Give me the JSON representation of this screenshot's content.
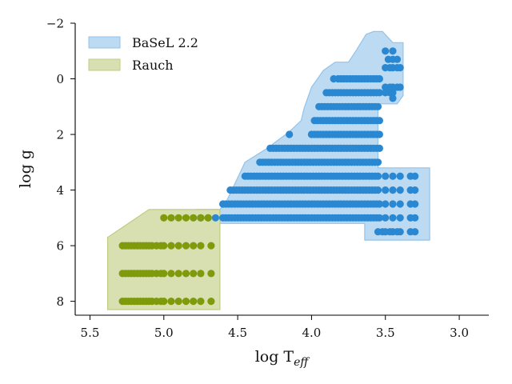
{
  "chart_data": {
    "type": "scatter",
    "xlabel": "log T",
    "xlabel_sub": "eff",
    "ylabel": "log g",
    "xlim": [
      5.6,
      2.8
    ],
    "ylim": [
      8.5,
      -2
    ],
    "xticks": [
      5.5,
      5.0,
      4.5,
      4.0,
      3.5,
      3.0
    ],
    "xtick_labels": [
      "5.5",
      "5.0",
      "4.5",
      "4.0",
      "3.5",
      "3.0"
    ],
    "yticks": [
      -2,
      0,
      2,
      4,
      6,
      8
    ],
    "ytick_labels": [
      "−2",
      "0",
      "2",
      "4",
      "6",
      "8"
    ],
    "grid": false,
    "legend_position": "top-left",
    "series": [
      {
        "name": "BaSeL 2.2",
        "color": "#2a88d2",
        "fill_color": "#bcdaf2",
        "edge_color": "#92c3ea",
        "region": [
          [
            4.78,
            5.2
          ],
          [
            4.78,
            4.7
          ],
          [
            4.62,
            4.7
          ],
          [
            4.58,
            4.45
          ],
          [
            4.45,
            3.0
          ],
          [
            4.3,
            2.5
          ],
          [
            4.15,
            1.9
          ],
          [
            4.07,
            1.5
          ],
          [
            4.05,
            1.05
          ],
          [
            4.0,
            0.3
          ],
          [
            3.92,
            -0.3
          ],
          [
            3.84,
            -0.6
          ],
          [
            3.75,
            -0.6
          ],
          [
            3.7,
            -1.0
          ],
          [
            3.63,
            -1.6
          ],
          [
            3.58,
            -1.7
          ],
          [
            3.52,
            -1.7
          ],
          [
            3.45,
            -1.3
          ],
          [
            3.38,
            -1.3
          ],
          [
            3.38,
            0.6
          ],
          [
            3.42,
            0.9
          ],
          [
            3.5,
            0.9
          ],
          [
            3.55,
            0.9
          ],
          [
            3.55,
            3.2
          ],
          [
            3.2,
            3.2
          ],
          [
            3.2,
            5.8
          ],
          [
            3.45,
            5.8
          ],
          [
            3.64,
            5.8
          ],
          [
            3.64,
            5.2
          ]
        ],
        "rows": [
          {
            "y": -1.0,
            "x": [
              3.5,
              3.45
            ]
          },
          {
            "y": -0.7,
            "x": [
              3.48,
              3.45,
              3.42
            ]
          },
          {
            "y": -0.4,
            "x": [
              3.5,
              3.47,
              3.45,
              3.42,
              3.4
            ]
          },
          {
            "y": 0.0,
            "x": [
              3.85,
              3.82,
              3.8,
              3.78,
              3.76,
              3.74,
              3.72,
              3.7,
              3.68,
              3.66,
              3.64,
              3.62,
              3.6,
              3.58,
              3.56,
              3.54
            ]
          },
          {
            "y": 0.3,
            "x": [
              3.5,
              3.47,
              3.45,
              3.42,
              3.4
            ]
          },
          {
            "y": 0.5,
            "x": [
              3.9,
              3.88,
              3.86,
              3.84,
              3.82,
              3.8,
              3.78,
              3.76,
              3.74,
              3.72,
              3.7,
              3.68,
              3.66,
              3.64,
              3.62,
              3.6,
              3.58,
              3.56,
              3.54,
              3.5,
              3.47,
              3.45
            ]
          },
          {
            "y": 0.7,
            "x": [
              3.45
            ]
          },
          {
            "y": 1.0,
            "x": [
              3.95,
              3.93,
              3.91,
              3.89,
              3.87,
              3.85,
              3.83,
              3.81,
              3.79,
              3.77,
              3.75,
              3.73,
              3.71,
              3.69,
              3.67,
              3.65,
              3.63,
              3.61,
              3.59,
              3.57,
              3.55
            ]
          },
          {
            "y": 1.5,
            "x": [
              3.98,
              3.96,
              3.94,
              3.92,
              3.9,
              3.88,
              3.86,
              3.84,
              3.82,
              3.8,
              3.78,
              3.76,
              3.74,
              3.72,
              3.7,
              3.68,
              3.66,
              3.64,
              3.62,
              3.6,
              3.58,
              3.56,
              3.54
            ]
          },
          {
            "y": 2.0,
            "x": [
              4.15,
              4.0,
              3.98,
              3.96,
              3.94,
              3.92,
              3.9,
              3.88,
              3.86,
              3.84,
              3.82,
              3.8,
              3.78,
              3.76,
              3.74,
              3.72,
              3.7,
              3.68,
              3.66,
              3.64,
              3.62,
              3.6,
              3.58,
              3.56,
              3.54
            ]
          },
          {
            "y": 2.5,
            "x": [
              4.28,
              4.26,
              4.24,
              4.22,
              4.2,
              4.18,
              4.16,
              4.14,
              4.12,
              4.1,
              4.08,
              4.06,
              4.04,
              4.02,
              4.0,
              3.98,
              3.96,
              3.94,
              3.92,
              3.9,
              3.88,
              3.86,
              3.84,
              3.82,
              3.8,
              3.78,
              3.76,
              3.74,
              3.72,
              3.7,
              3.68,
              3.66,
              3.64,
              3.62,
              3.6,
              3.58,
              3.56,
              3.54
            ]
          },
          {
            "y": 3.0,
            "x": [
              4.35,
              4.33,
              4.31,
              4.29,
              4.27,
              4.25,
              4.23,
              4.21,
              4.19,
              4.17,
              4.15,
              4.13,
              4.11,
              4.09,
              4.07,
              4.05,
              4.03,
              4.01,
              3.99,
              3.97,
              3.95,
              3.93,
              3.91,
              3.89,
              3.87,
              3.85,
              3.83,
              3.81,
              3.79,
              3.77,
              3.75,
              3.73,
              3.71,
              3.69,
              3.67,
              3.65,
              3.63,
              3.61,
              3.59,
              3.57,
              3.55
            ]
          },
          {
            "y": 3.5,
            "x": [
              4.45,
              4.43,
              4.41,
              4.39,
              4.37,
              4.35,
              4.33,
              4.31,
              4.29,
              4.27,
              4.25,
              4.23,
              4.21,
              4.19,
              4.17,
              4.15,
              4.13,
              4.11,
              4.09,
              4.07,
              4.05,
              4.03,
              4.01,
              3.99,
              3.97,
              3.95,
              3.93,
              3.91,
              3.89,
              3.87,
              3.85,
              3.83,
              3.81,
              3.79,
              3.77,
              3.75,
              3.73,
              3.71,
              3.69,
              3.67,
              3.65,
              3.63,
              3.61,
              3.59,
              3.57,
              3.55,
              3.5,
              3.45,
              3.4,
              3.33,
              3.3
            ]
          },
          {
            "y": 4.0,
            "x": [
              4.55,
              4.53,
              4.51,
              4.49,
              4.47,
              4.45,
              4.43,
              4.41,
              4.39,
              4.37,
              4.35,
              4.33,
              4.31,
              4.29,
              4.27,
              4.25,
              4.23,
              4.21,
              4.19,
              4.17,
              4.15,
              4.13,
              4.11,
              4.09,
              4.07,
              4.05,
              4.03,
              4.01,
              3.99,
              3.97,
              3.95,
              3.93,
              3.91,
              3.89,
              3.87,
              3.85,
              3.83,
              3.81,
              3.79,
              3.77,
              3.75,
              3.73,
              3.71,
              3.69,
              3.67,
              3.65,
              3.63,
              3.61,
              3.59,
              3.57,
              3.55,
              3.5,
              3.45,
              3.4,
              3.33,
              3.3
            ]
          },
          {
            "y": 4.5,
            "x": [
              4.6,
              4.58,
              4.56,
              4.54,
              4.52,
              4.5,
              4.48,
              4.46,
              4.44,
              4.42,
              4.4,
              4.38,
              4.36,
              4.34,
              4.32,
              4.3,
              4.28,
              4.26,
              4.24,
              4.22,
              4.2,
              4.18,
              4.16,
              4.14,
              4.12,
              4.1,
              4.08,
              4.06,
              4.04,
              4.02,
              4.0,
              3.98,
              3.96,
              3.94,
              3.92,
              3.9,
              3.88,
              3.86,
              3.84,
              3.82,
              3.8,
              3.78,
              3.76,
              3.74,
              3.72,
              3.7,
              3.68,
              3.66,
              3.64,
              3.62,
              3.6,
              3.58,
              3.56,
              3.54,
              3.5,
              3.45,
              3.4,
              3.33,
              3.3
            ]
          },
          {
            "y": 5.0,
            "x": [
              4.75,
              4.7,
              4.65,
              4.6,
              4.58,
              4.56,
              4.54,
              4.52,
              4.5,
              4.48,
              4.46,
              4.44,
              4.42,
              4.4,
              4.38,
              4.36,
              4.34,
              4.32,
              4.3,
              4.28,
              4.26,
              4.24,
              4.22,
              4.2,
              4.18,
              4.16,
              4.14,
              4.12,
              4.1,
              4.08,
              4.06,
              4.04,
              4.02,
              4.0,
              3.98,
              3.96,
              3.94,
              3.92,
              3.9,
              3.88,
              3.86,
              3.84,
              3.82,
              3.8,
              3.78,
              3.76,
              3.74,
              3.72,
              3.7,
              3.68,
              3.66,
              3.64,
              3.62,
              3.6,
              3.58,
              3.56,
              3.54,
              3.5,
              3.45,
              3.4,
              3.33,
              3.3
            ]
          },
          {
            "y": 5.5,
            "x": [
              3.55,
              3.52,
              3.5,
              3.47,
              3.45,
              3.42,
              3.4,
              3.33,
              3.3
            ]
          }
        ]
      },
      {
        "name": "Rauch",
        "color": "#7f9a0a",
        "fill_color": "#d8e0b2",
        "edge_color": "#bfcd82",
        "region": [
          [
            5.38,
            8.3
          ],
          [
            4.62,
            8.3
          ],
          [
            4.62,
            4.7
          ],
          [
            5.1,
            4.7
          ],
          [
            5.38,
            5.7
          ]
        ],
        "rows": [
          {
            "y": 5.0,
            "x": [
              5.0,
              4.95,
              4.9,
              4.85,
              4.8,
              4.75,
              4.7
            ]
          },
          {
            "y": 6.0,
            "x": [
              5.28,
              5.26,
              5.24,
              5.22,
              5.2,
              5.18,
              5.16,
              5.14,
              5.12,
              5.1,
              5.08,
              5.05,
              5.02,
              5.0,
              4.95,
              4.9,
              4.85,
              4.8,
              4.75,
              4.68
            ]
          },
          {
            "y": 7.0,
            "x": [
              5.28,
              5.26,
              5.24,
              5.22,
              5.2,
              5.18,
              5.16,
              5.14,
              5.12,
              5.1,
              5.08,
              5.05,
              5.02,
              5.0,
              4.95,
              4.9,
              4.85,
              4.8,
              4.75,
              4.68
            ]
          },
          {
            "y": 8.0,
            "x": [
              5.28,
              5.26,
              5.24,
              5.22,
              5.2,
              5.18,
              5.16,
              5.14,
              5.12,
              5.1,
              5.08,
              5.05,
              5.02,
              5.0,
              4.95,
              4.9,
              4.85,
              4.8,
              4.75,
              4.68
            ]
          }
        ]
      }
    ]
  }
}
